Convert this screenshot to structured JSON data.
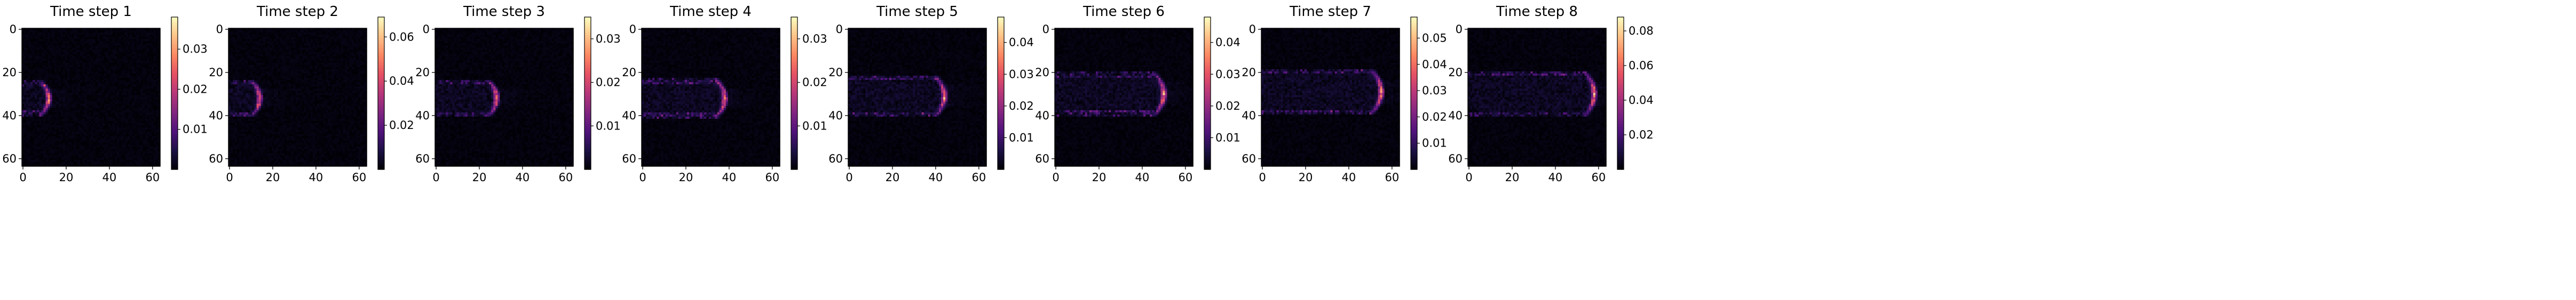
{
  "figure": {
    "colormap": "magma",
    "colormap_stops": [
      "#000004",
      "#1c1044",
      "#4f127b",
      "#812581",
      "#b5367a",
      "#e55064",
      "#fb8761",
      "#fec287",
      "#fcfdbf"
    ]
  },
  "chart_data": [
    {
      "type": "heatmap",
      "title": "Time step 1",
      "x_ticks": [
        0,
        20,
        40,
        60
      ],
      "y_ticks": [
        0,
        20,
        40,
        60
      ],
      "xlim": [
        0,
        63
      ],
      "ylim": [
        63,
        0
      ],
      "grid": false,
      "colorbar_ticks": [
        0.01,
        0.02,
        0.03
      ],
      "colorbar_range": [
        0,
        0.038
      ],
      "front_x": 12,
      "front_y": 32,
      "front_peak": 0.036
    },
    {
      "type": "heatmap",
      "title": "Time step 2",
      "x_ticks": [
        0,
        20,
        40,
        60
      ],
      "y_ticks": [
        0,
        20,
        40,
        60
      ],
      "xlim": [
        0,
        63
      ],
      "ylim": [
        63,
        0
      ],
      "grid": false,
      "colorbar_ticks": [
        0.02,
        0.04,
        0.06
      ],
      "colorbar_range": [
        0,
        0.069
      ],
      "front_x": 14,
      "front_y": 32,
      "front_peak": 0.066
    },
    {
      "type": "heatmap",
      "title": "Time step 3",
      "x_ticks": [
        0,
        20,
        40,
        60
      ],
      "y_ticks": [
        0,
        20,
        40,
        60
      ],
      "xlim": [
        0,
        63
      ],
      "ylim": [
        63,
        0
      ],
      "grid": false,
      "colorbar_ticks": [
        0.01,
        0.02,
        0.03
      ],
      "colorbar_range": [
        0,
        0.035
      ],
      "front_x": 28,
      "front_y": 32,
      "front_peak": 0.033
    },
    {
      "type": "heatmap",
      "title": "Time step 4",
      "x_ticks": [
        0,
        20,
        40,
        60
      ],
      "y_ticks": [
        0,
        20,
        40,
        60
      ],
      "xlim": [
        0,
        63
      ],
      "ylim": [
        63,
        0
      ],
      "grid": false,
      "colorbar_ticks": [
        0.01,
        0.02,
        0.03
      ],
      "colorbar_range": [
        0,
        0.035
      ],
      "front_x": 38,
      "front_y": 32,
      "front_peak": 0.034
    },
    {
      "type": "heatmap",
      "title": "Time step 5",
      "x_ticks": [
        0,
        20,
        40,
        60
      ],
      "y_ticks": [
        0,
        20,
        40,
        60
      ],
      "xlim": [
        0,
        63
      ],
      "ylim": [
        63,
        0
      ],
      "grid": false,
      "colorbar_ticks": [
        0.01,
        0.02,
        0.03,
        0.04
      ],
      "colorbar_range": [
        0,
        0.048
      ],
      "front_x": 44,
      "front_y": 31,
      "front_peak": 0.047
    },
    {
      "type": "heatmap",
      "title": "Time step 6",
      "x_ticks": [
        0,
        20,
        40,
        60
      ],
      "y_ticks": [
        0,
        20,
        40,
        60
      ],
      "xlim": [
        0,
        63
      ],
      "ylim": [
        63,
        0
      ],
      "grid": false,
      "colorbar_ticks": [
        0.01,
        0.02,
        0.03,
        0.04
      ],
      "colorbar_range": [
        0,
        0.048
      ],
      "front_x": 50,
      "front_y": 30,
      "front_peak": 0.047
    },
    {
      "type": "heatmap",
      "title": "Time step 7",
      "x_ticks": [
        0,
        20,
        40,
        60
      ],
      "y_ticks": [
        0,
        20,
        40,
        60
      ],
      "xlim": [
        0,
        63
      ],
      "ylim": [
        63,
        0
      ],
      "grid": false,
      "colorbar_ticks": [
        0.01,
        0.02,
        0.03,
        0.04,
        0.05
      ],
      "colorbar_range": [
        0,
        0.058
      ],
      "front_x": 55,
      "front_y": 29,
      "front_peak": 0.057
    },
    {
      "type": "heatmap",
      "title": "Time step 8",
      "x_ticks": [
        0,
        20,
        40,
        60
      ],
      "y_ticks": [
        0,
        20,
        40,
        60
      ],
      "xlim": [
        0,
        63
      ],
      "ylim": [
        63,
        0
      ],
      "grid": false,
      "colorbar_ticks": [
        0.02,
        0.04,
        0.06,
        0.08
      ],
      "colorbar_range": [
        0,
        0.088
      ],
      "front_x": 58,
      "front_y": 30,
      "front_peak": 0.085
    }
  ]
}
